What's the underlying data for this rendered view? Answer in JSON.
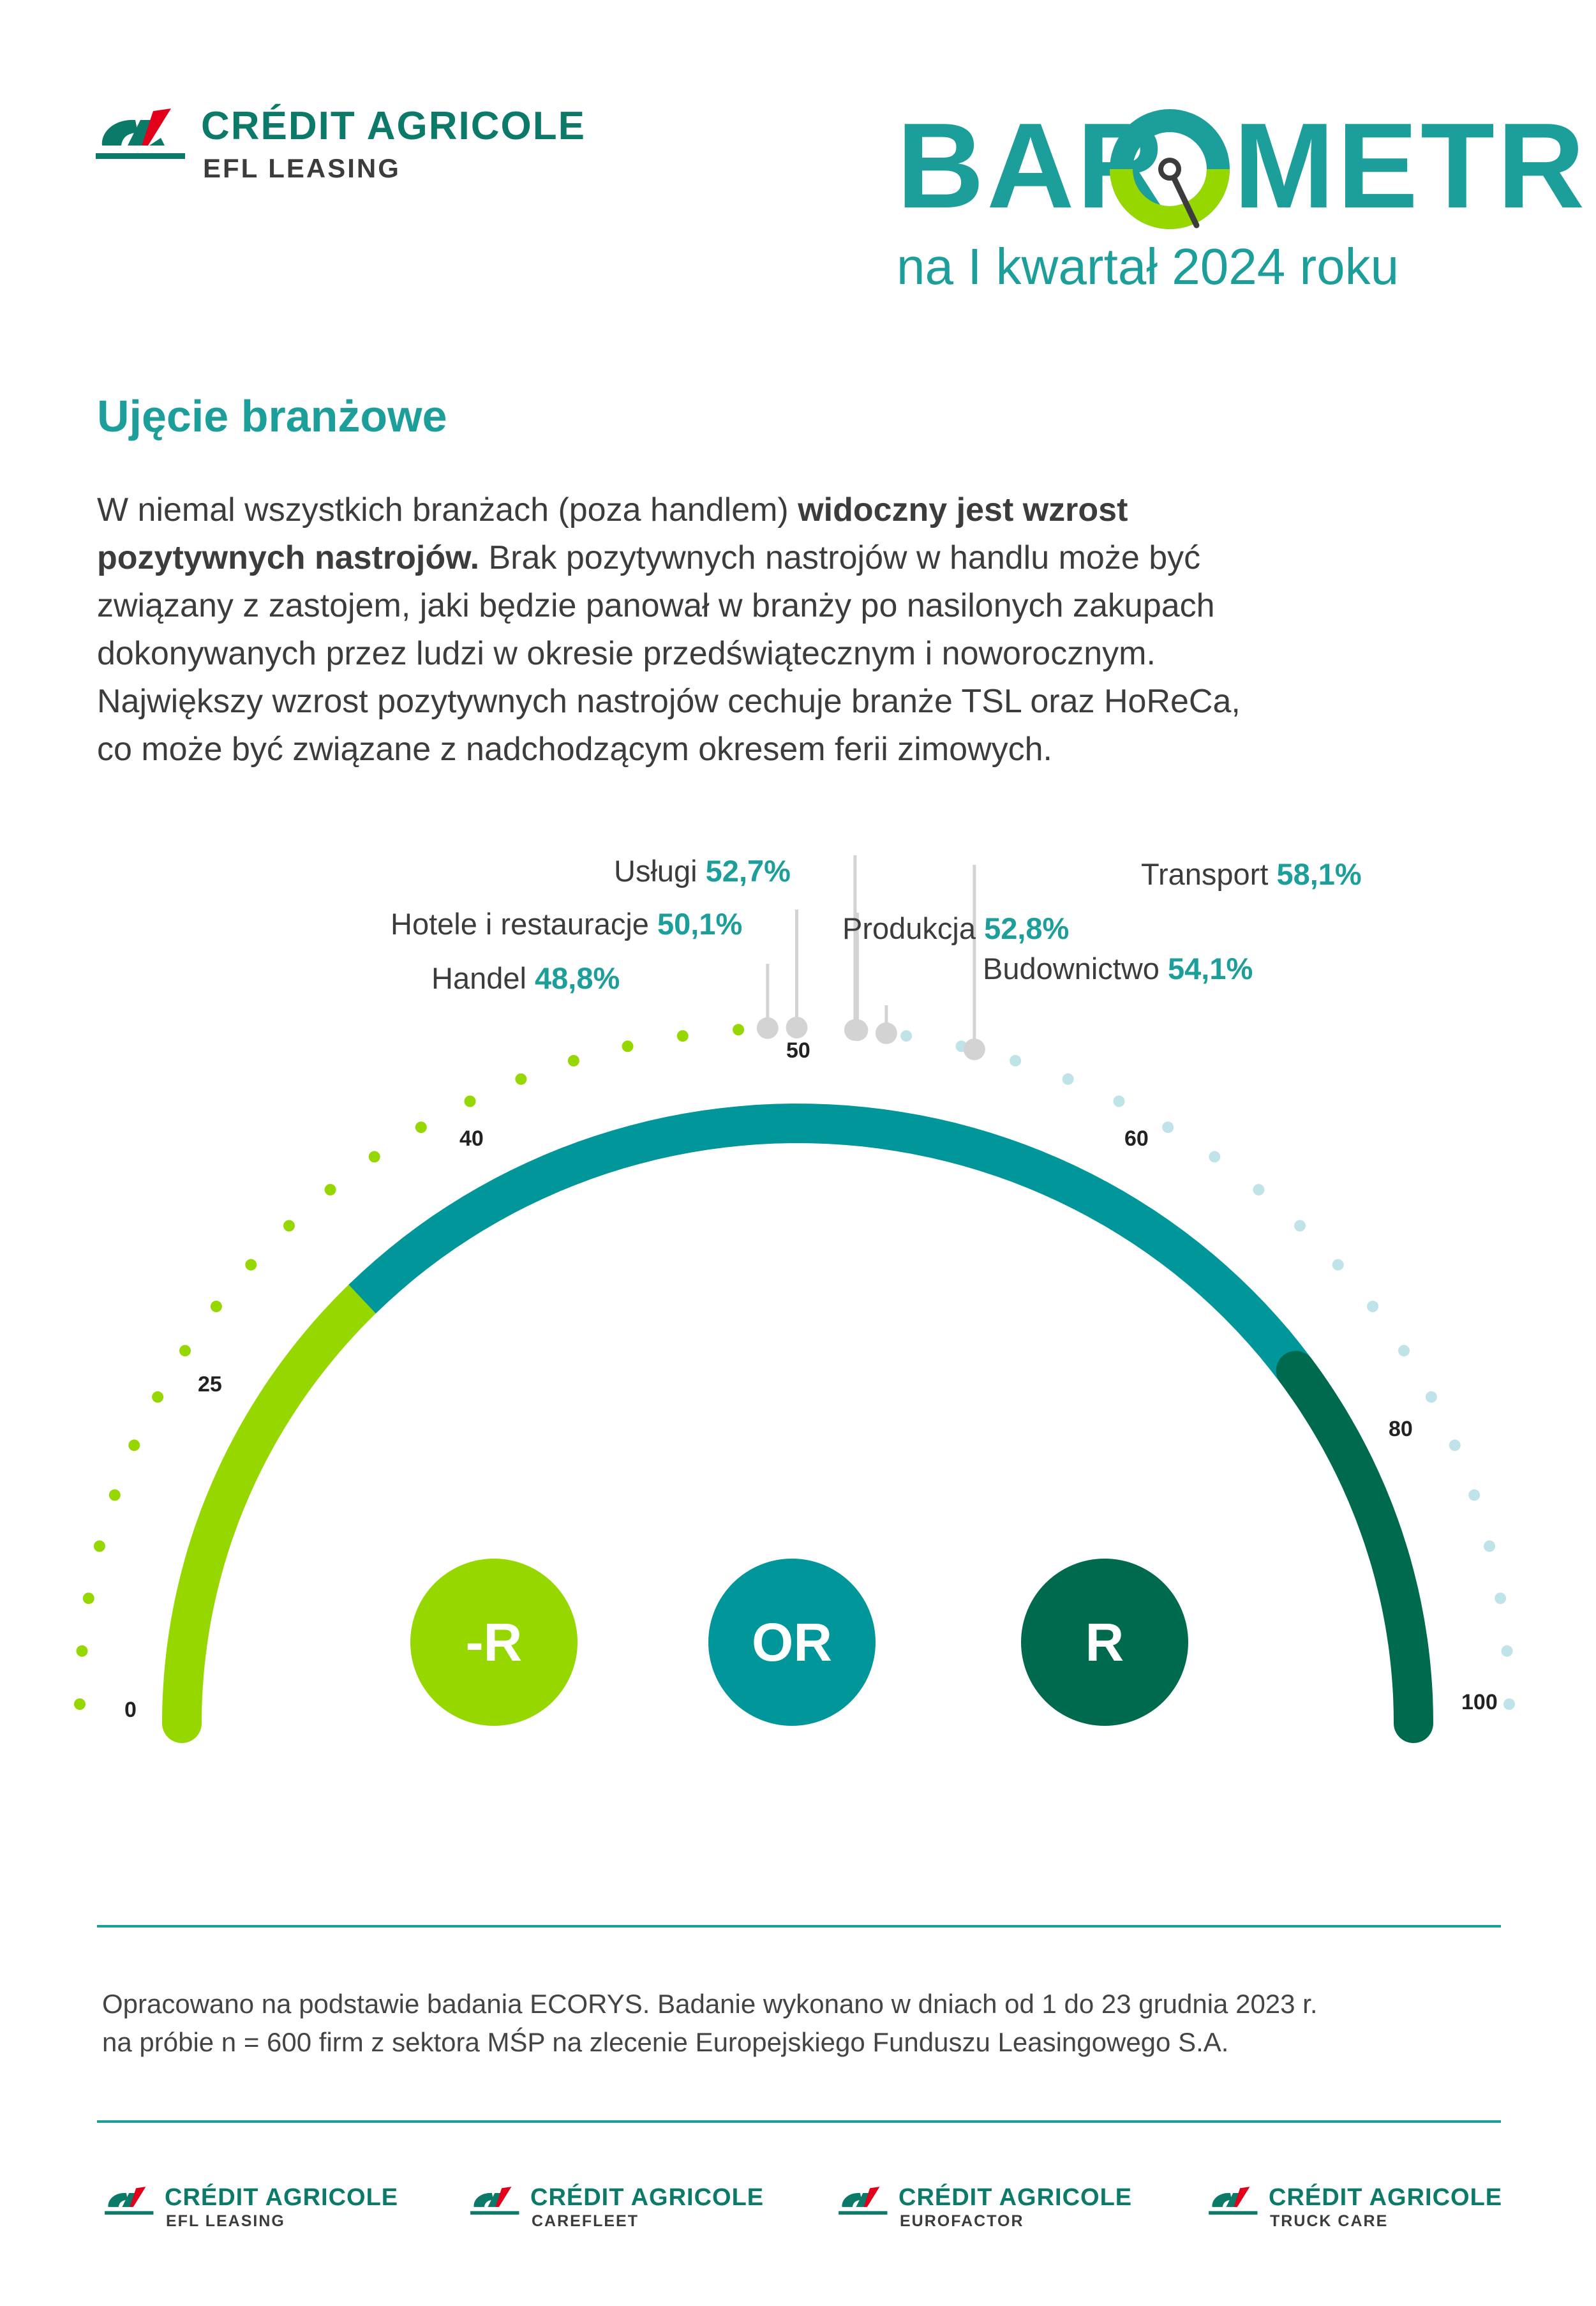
{
  "header": {
    "brand_name": "CRÉDIT AGRICOLE",
    "brand_sub": "EFL LEASING",
    "barometr_left": "BAR",
    "barometr_right": "METR",
    "subtitle": "na I kwartał 2024 roku"
  },
  "section": {
    "title": "Ujęcie branżowe",
    "lines": [
      {
        "a": "W niemal wszystkich branżach (poza handlem) ",
        "b": "widoczny jest wzrost",
        "c": ""
      },
      {
        "a": "",
        "b": "pozytywnych nastrojów.",
        "c": " Brak pozytywnych nastrojów w handlu może być"
      },
      {
        "a": "związany z zastojem, jaki będzie panował w branży po nasilonych zakupach",
        "b": "",
        "c": ""
      },
      {
        "a": "dokonywanych przez ludzi w okresie przedświątecznym i noworocznym.",
        "b": "",
        "c": ""
      },
      {
        "a": "Największy wzrost pozytywnych nastrojów cechuje branże TSL oraz HoReCa,",
        "b": "",
        "c": ""
      },
      {
        "a": "co może być związane z nadchodzącym okresem ferii zimowych.",
        "b": "",
        "c": ""
      }
    ]
  },
  "chart_data": {
    "type": "gauge",
    "scale_min": 0,
    "scale_max": 100,
    "tick_labels": [
      "0",
      "25",
      "40",
      "50",
      "60",
      "80",
      "100"
    ],
    "segments": [
      {
        "label": "-R",
        "from": 0,
        "to": 25,
        "color": "#97d700"
      },
      {
        "label": "OR",
        "from": 25,
        "to": 80,
        "color": "#00969a"
      },
      {
        "label": "R",
        "from": 80,
        "to": 100,
        "color": "#006a4e"
      }
    ],
    "sectors": [
      {
        "name": "Handel",
        "value": 48.8,
        "value_label": "48,8%"
      },
      {
        "name": "Hotele i restauracje",
        "value": 50.1,
        "value_label": "50,1%"
      },
      {
        "name": "Usługi",
        "value": 52.7,
        "value_label": "52,7%"
      },
      {
        "name": "Produkcja",
        "value": 52.8,
        "value_label": "52,8%"
      },
      {
        "name": "Budownictwo",
        "value": 54.1,
        "value_label": "54,1%"
      },
      {
        "name": "Transport",
        "value": 58.1,
        "value_label": "58,1%"
      }
    ]
  },
  "zones": [
    "-R",
    "OR",
    "R"
  ],
  "colors": {
    "teal": "#1c9e9a",
    "green": "#97d700",
    "dark_green": "#006a4e",
    "light_dot": "#bfe3e8",
    "marker": "#d3d3d3"
  },
  "footnote": {
    "line1": "Opracowano na podstawie badania ECORYS. Badanie wykonano w dniach od 1 do 23 grudnia 2023 r.",
    "line2": "na próbie n = 600 firm z sektora MŚP na zlecenie Europejskiego Funduszu Leasingowego S.A."
  },
  "footer_logos": [
    {
      "name": "CRÉDIT AGRICOLE",
      "sub": "EFL LEASING"
    },
    {
      "name": "CRÉDIT AGRICOLE",
      "sub": "CAREFLEET"
    },
    {
      "name": "CRÉDIT AGRICOLE",
      "sub": "EUROFACTOR"
    },
    {
      "name": "CRÉDIT AGRICOLE",
      "sub": "TRUCK CARE"
    }
  ]
}
